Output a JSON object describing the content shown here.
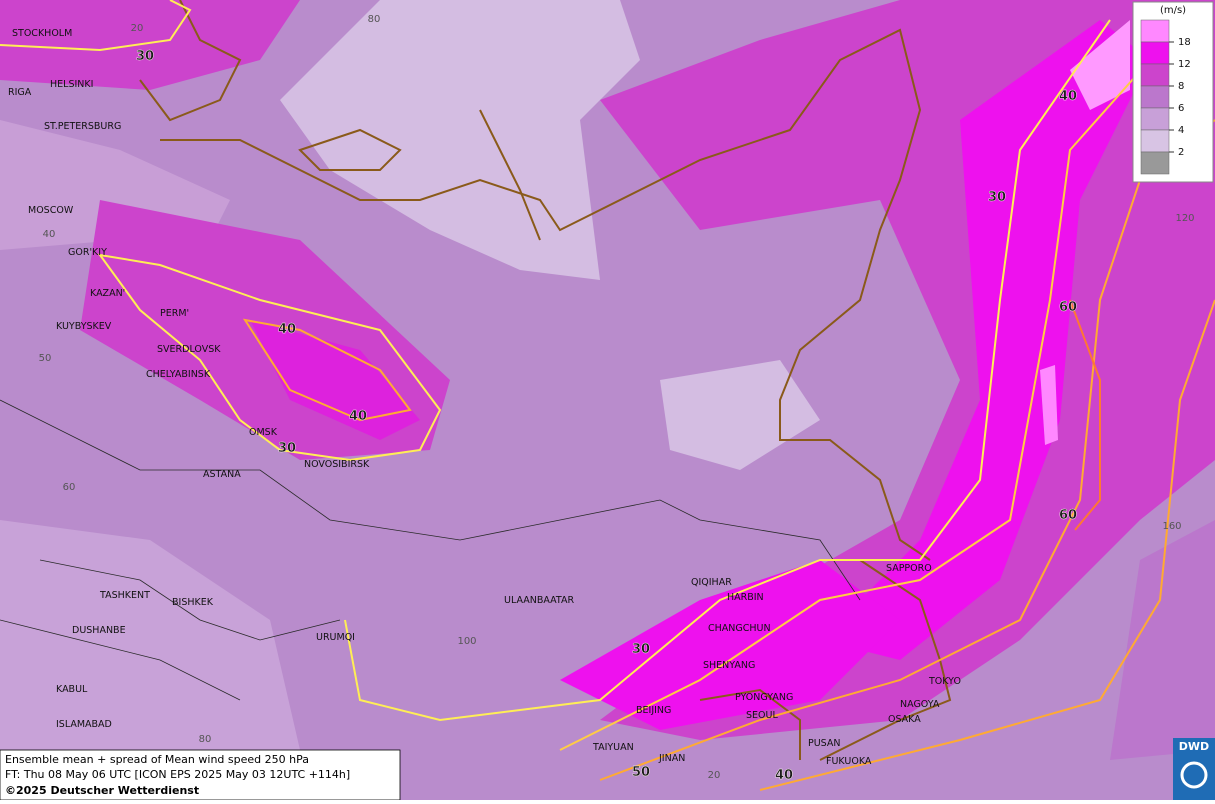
{
  "map": {
    "cities": [
      "STOCKHOLM",
      "HELSINKI",
      "RIGA",
      "ST.PETERSBURG",
      "MOSCOW",
      "GOR'KIY",
      "KAZAN'",
      "PERM'",
      "KUYBYSKEV",
      "SVERDLOVSK",
      "CHELYABINSK",
      "OMSK",
      "NOVOSIBIRSK",
      "ASTANA",
      "TASHKENT",
      "BISHKEK",
      "DUSHANBE",
      "URUMQI",
      "KABUL",
      "ISLAMABAD",
      "ULAANBAATAR",
      "QIQIHAR",
      "HARBIN",
      "CHANGCHUN",
      "SHENYANG",
      "PYONGYANG",
      "BEIJING",
      "SEOUL",
      "TAIYUAN",
      "JINAN",
      "PUSAN",
      "FUKUOKA",
      "SAPPORO",
      "TOKYO",
      "NAGOYA",
      "OSAKA"
    ],
    "contour_labels": [
      30,
      40,
      40,
      30,
      40,
      30,
      60,
      60,
      30,
      50,
      40
    ],
    "grid_labels": [
      20,
      80,
      40,
      50,
      60,
      100,
      80,
      20,
      120,
      160
    ]
  },
  "legend": {
    "unit": "(m/s)",
    "ticks": [
      18,
      12,
      8,
      6,
      4,
      2
    ],
    "colors": [
      "#ff88ff",
      "#ee11ee",
      "#cc44cc",
      "#bb77cc",
      "#c8a0d8",
      "#d8c4e4",
      "#999999"
    ]
  },
  "footer": {
    "line1": "Ensemble mean + spread of Mean wind speed 250 hPa",
    "line2": "FT: Thu 08 May 06 UTC [ICON EPS 2025 May 03 12UTC +114h]",
    "line3": "©2025 Deutscher Wetterdienst",
    "logo": "DWD"
  }
}
